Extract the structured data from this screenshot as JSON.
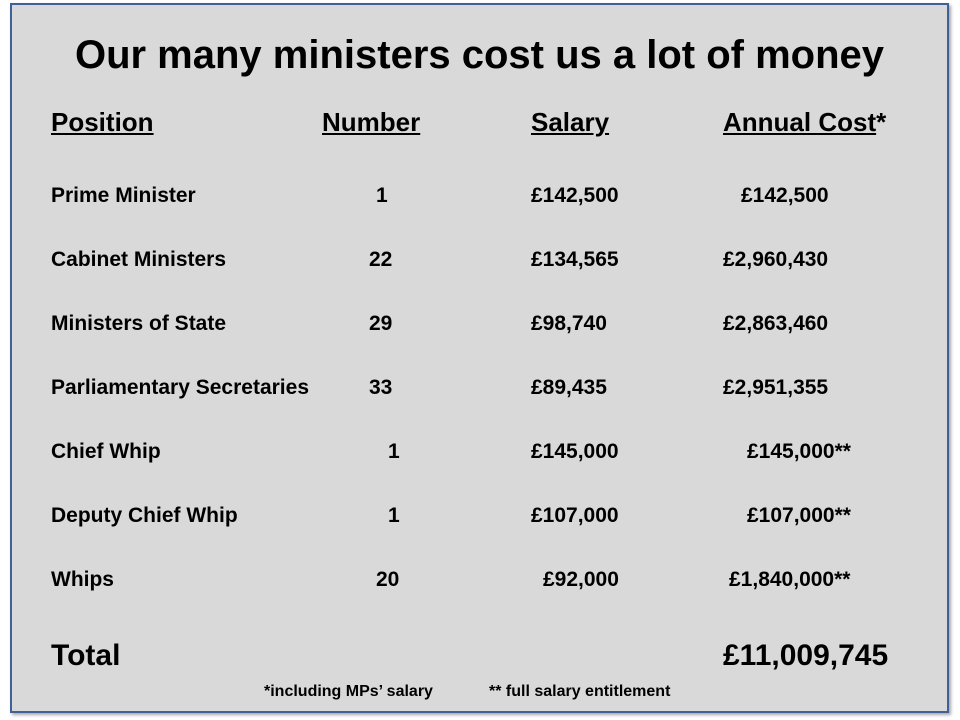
{
  "title": "Our many ministers cost us a lot of money",
  "headers": {
    "position": "Position",
    "number": "Number",
    "salary": "Salary",
    "annual_cost": "Annual Cost",
    "annual_cost_mark": "*"
  },
  "rows": [
    {
      "position": "Prime Minister",
      "number": "1",
      "salary": "£142,500",
      "annual_cost": "£142,500"
    },
    {
      "position": "Cabinet Ministers",
      "number": "22",
      "salary": "£134,565",
      "annual_cost": "£2,960,430"
    },
    {
      "position": "Ministers of State",
      "number": "29",
      "salary": "£98,740",
      "annual_cost": "£2,863,460"
    },
    {
      "position": "Parliamentary Secretaries",
      "number": "33",
      "salary": "£89,435",
      "annual_cost": "£2,951,355"
    },
    {
      "position": "Chief Whip",
      "number": "1",
      "salary": "£145,000",
      "annual_cost": "£145,000**"
    },
    {
      "position": "Deputy Chief Whip",
      "number": "1",
      "salary": "£107,000",
      "annual_cost": "£107,000**"
    },
    {
      "position": "Whips",
      "number": "20",
      "salary": "£92,000",
      "annual_cost": "£1,840,000**"
    }
  ],
  "total": {
    "label": "Total",
    "value": "£11,009,745"
  },
  "footnotes": {
    "single": "*including  MPs’ salary",
    "double": "** full salary entitlement"
  },
  "colors": {
    "background": "#d9d9d9",
    "border": "#40609a"
  }
}
